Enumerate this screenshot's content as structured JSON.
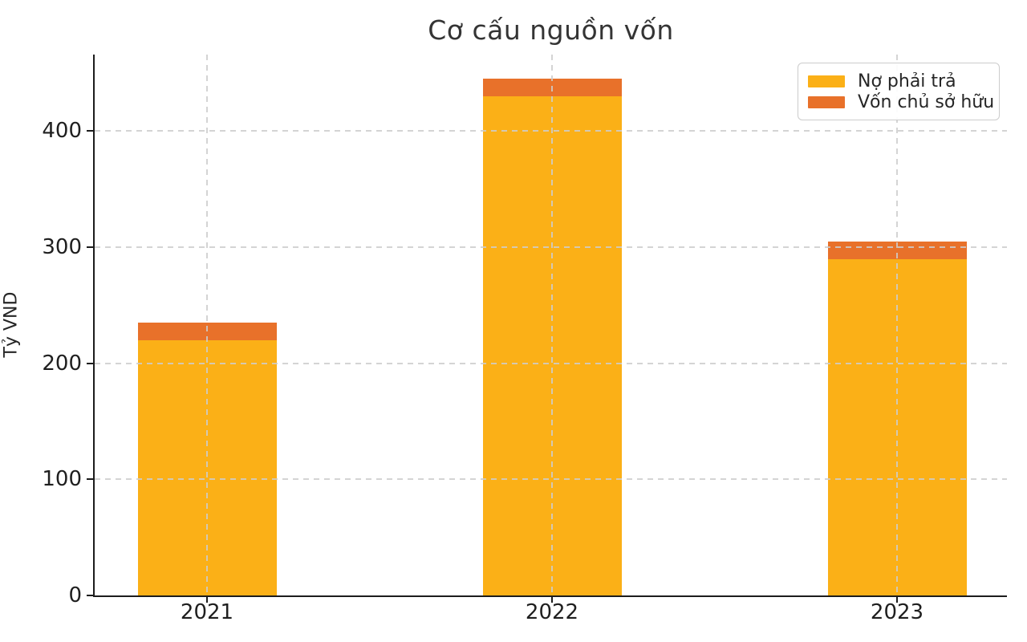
{
  "chart_data": {
    "type": "bar",
    "stacked": true,
    "title": "Cơ cấu nguồn vốn",
    "xlabel": "",
    "ylabel": "Tỷ VND",
    "categories": [
      "2021",
      "2022",
      "2023"
    ],
    "series": [
      {
        "name": "Nợ phải trả",
        "color": "#FBB017",
        "values": [
          220,
          430,
          290
        ]
      },
      {
        "name": "Vốn chủ sở hữu",
        "color": "#E8712A",
        "values": [
          15,
          15,
          15
        ]
      }
    ],
    "totals": [
      235,
      445,
      305
    ],
    "ylim": [
      0,
      466
    ],
    "yticks": [
      0,
      100,
      200,
      300,
      400
    ],
    "grid": "dashed gridlines on both axes, drawn above bars",
    "legend_position": "upper right",
    "background_color": "#ffffff",
    "gridline_color": "#cdcdcd",
    "axis_color": "#1c1c1c",
    "text_color": "#262626"
  }
}
